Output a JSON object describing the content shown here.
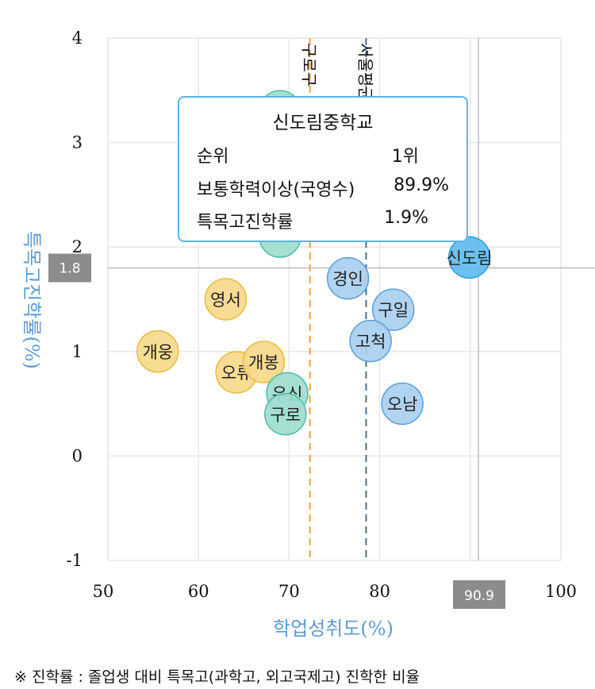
{
  "chart_data": {
    "type": "scatter",
    "xlabel": "학업성취도(%)",
    "ylabel": "특목고진학률(%)",
    "xlim": [
      50,
      100
    ],
    "ylim": [
      -1,
      4
    ],
    "x_ticks": [
      "50",
      "60",
      "70",
      "80",
      "90",
      "100"
    ],
    "y_ticks": [
      "-1",
      "0",
      "1",
      "2",
      "3",
      "4"
    ],
    "grid": true,
    "series": [
      {
        "color": "#f9d98b",
        "stroke": "#e8b93a",
        "points": [
          {
            "label": "개웅",
            "x": 55.5,
            "y": 1.0
          },
          {
            "label": "영서",
            "x": 63.0,
            "y": 1.5
          },
          {
            "label": "오류",
            "x": 64.2,
            "y": 0.8
          },
          {
            "label": "개봉",
            "x": 67.2,
            "y": 0.9
          }
        ]
      },
      {
        "color": "#9fdccf",
        "stroke": "#4dbca6",
        "points": [
          {
            "label": "우신",
            "x": 69.8,
            "y": 0.6
          },
          {
            "label": "구로",
            "x": 69.6,
            "y": 0.4
          },
          {
            "label": "",
            "x": 69.0,
            "y": 2.1
          },
          {
            "label": "",
            "x": 69.0,
            "y": 3.3
          }
        ]
      },
      {
        "color": "#a9cff0",
        "stroke": "#5a9fda",
        "points": [
          {
            "label": "경인",
            "x": 76.5,
            "y": 1.7
          },
          {
            "label": "구일",
            "x": 81.5,
            "y": 1.4
          },
          {
            "label": "고척",
            "x": 79.0,
            "y": 1.1
          },
          {
            "label": "오남",
            "x": 82.5,
            "y": 0.5
          }
        ]
      },
      {
        "color": "#5fbcf0",
        "stroke": "#2a9ad8",
        "points": [
          {
            "label": "신도림",
            "x": 89.9,
            "y": 1.9
          }
        ]
      }
    ],
    "reference_lines": [
      {
        "label": "구로구",
        "axis": "x",
        "value": 72.3,
        "color": "#f0a040",
        "style": "dashed"
      },
      {
        "label": "서울평균",
        "axis": "x",
        "value": 78.5,
        "color": "#4a6f8a",
        "style": "dashed"
      },
      {
        "label": "",
        "axis": "x",
        "value": 90.9,
        "color": "#bdbdbd",
        "style": "solid",
        "value_label": "90.9"
      },
      {
        "label": "",
        "axis": "y",
        "value": 1.8,
        "color": "#bdbdbd",
        "style": "solid",
        "value_label": "1.8"
      }
    ]
  },
  "tooltip": {
    "title": "신도림중학교",
    "rows": [
      {
        "key": "순위",
        "value": "1위"
      },
      {
        "key": "보통학력이상(국영수)",
        "value": "89.9%"
      },
      {
        "key": "특목고진학률",
        "value": "1.9%"
      }
    ]
  },
  "footnote": "※ 진학률 : 졸업생 대비 특목고(과학고, 외고국제고) 진학한 비율"
}
